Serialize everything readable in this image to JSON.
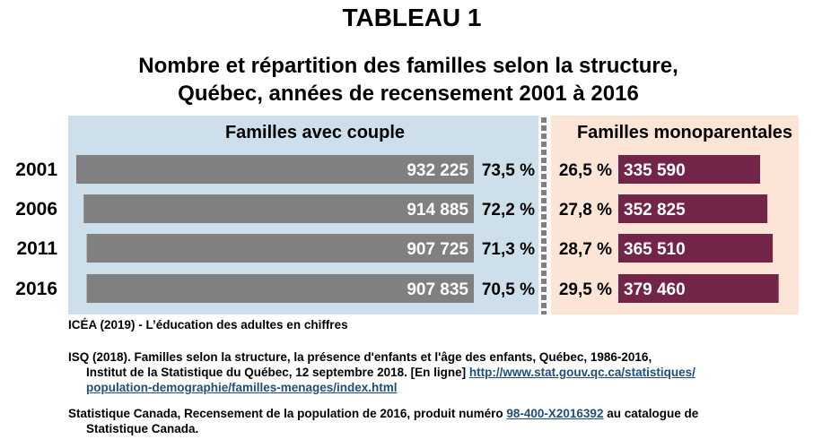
{
  "title": "TABLEAU 1",
  "subtitle_line1": "Nombre et répartition des familles selon la structure,",
  "subtitle_line2": "Québec, années de recensement 2001 à 2016",
  "colors": {
    "couple_bg": "#cddfea",
    "mono_bg": "#fce4d6",
    "couple_bar": "#808080",
    "mono_bar": "#722548",
    "divider": "#7f7f7f"
  },
  "chart_data": {
    "type": "bar",
    "categories": [
      "2001",
      "2006",
      "2011",
      "2016"
    ],
    "series": [
      {
        "name": "Familles avec couple",
        "values": [
          932225,
          914885,
          907725,
          907835
        ],
        "value_labels": [
          "932 225",
          "914 885",
          "907 725",
          "907 835"
        ],
        "percent_labels": [
          "73,5 %",
          "72,2 %",
          "71,3 %",
          "70,5 %"
        ]
      },
      {
        "name": "Familles monoparentales",
        "values": [
          335590,
          352825,
          365510,
          379460
        ],
        "value_labels": [
          "335 590",
          "352 825",
          "365 510",
          "379 460"
        ],
        "percent_labels": [
          "26,5 %",
          "27,8 %",
          "28,7 %",
          "29,5 %"
        ]
      }
    ],
    "legend": "top",
    "grid": false
  },
  "sources": {
    "s1": "ICÉA (2019) - L’éducation des adultes en chiffres",
    "s2_line1": "ISQ (2018). Familles selon la structure, la présence d'enfants et l'âge des enfants, Québec, 1986-2016,",
    "s2_line2_text": "Institut de la Statistique du Québec, 12 septembre 2018. [En ligne] ",
    "s2_link_part1": "http://www.stat.gouv.qc.ca/statistiques/",
    "s2_link_part2": "population-demographie/familles-menages/index.html",
    "s3_text1": "Statistique Canada, Recensement de la population de 2016, produit numéro ",
    "s3_link": "98-400-X2016392",
    "s3_text2": " au catalogue de",
    "s3_line2": "Statistique Canada."
  }
}
